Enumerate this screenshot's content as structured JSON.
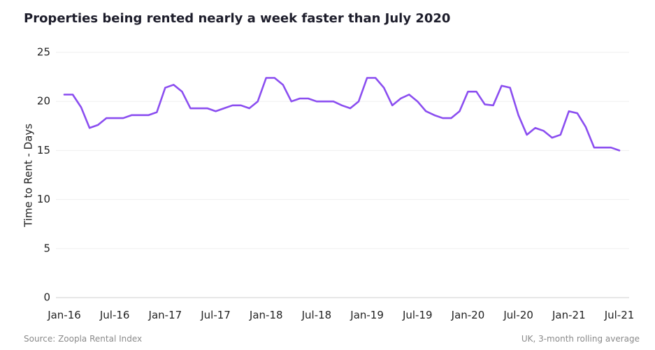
{
  "chart_data": {
    "type": "line",
    "title": "Properties being rented nearly a week faster than July 2020",
    "ylabel": "Time to Rent - Days",
    "source": "Source: Zoopla Rental Index",
    "note": "UK, 3-month rolling average",
    "categories": [
      "Jan-16",
      null,
      null,
      null,
      null,
      null,
      "Jul-16",
      null,
      null,
      null,
      null,
      null,
      "Jan-17",
      null,
      null,
      null,
      null,
      null,
      "Jul-17",
      null,
      null,
      null,
      null,
      null,
      "Jan-18",
      null,
      null,
      null,
      null,
      null,
      "Jul-18",
      null,
      null,
      null,
      null,
      null,
      "Jan-19",
      null,
      null,
      null,
      null,
      null,
      "Jul-19",
      null,
      null,
      null,
      null,
      null,
      "Jan-20",
      null,
      null,
      null,
      null,
      null,
      "Jul-20",
      null,
      null,
      null,
      null,
      null,
      "Jan-21",
      null,
      null,
      null,
      null,
      null,
      "Jul-21"
    ],
    "series": [
      {
        "color": "#8b4ef0",
        "values": [
          20.7,
          20.7,
          19.4,
          17.3,
          17.6,
          18.3,
          18.3,
          18.3,
          18.6,
          18.6,
          18.6,
          18.9,
          21.4,
          21.7,
          21.0,
          19.3,
          19.3,
          19.3,
          19.0,
          19.3,
          19.6,
          19.6,
          19.3,
          20.0,
          22.4,
          22.4,
          21.7,
          20.0,
          20.3,
          20.3,
          20.0,
          20.0,
          20.0,
          19.6,
          19.3,
          20.0,
          22.4,
          22.4,
          21.4,
          19.6,
          20.3,
          20.7,
          20.0,
          19.0,
          18.6,
          18.3,
          18.3,
          19.0,
          21.0,
          21.0,
          19.7,
          19.6,
          21.6,
          21.4,
          18.6,
          16.6,
          17.3,
          17.0,
          16.3,
          16.6,
          19.0,
          18.8,
          17.4,
          15.3,
          15.3,
          15.3,
          15.0
        ]
      }
    ],
    "ylim": [
      0,
      25
    ],
    "yticks": [
      0,
      5,
      10,
      15,
      20,
      25
    ],
    "grid": true
  }
}
